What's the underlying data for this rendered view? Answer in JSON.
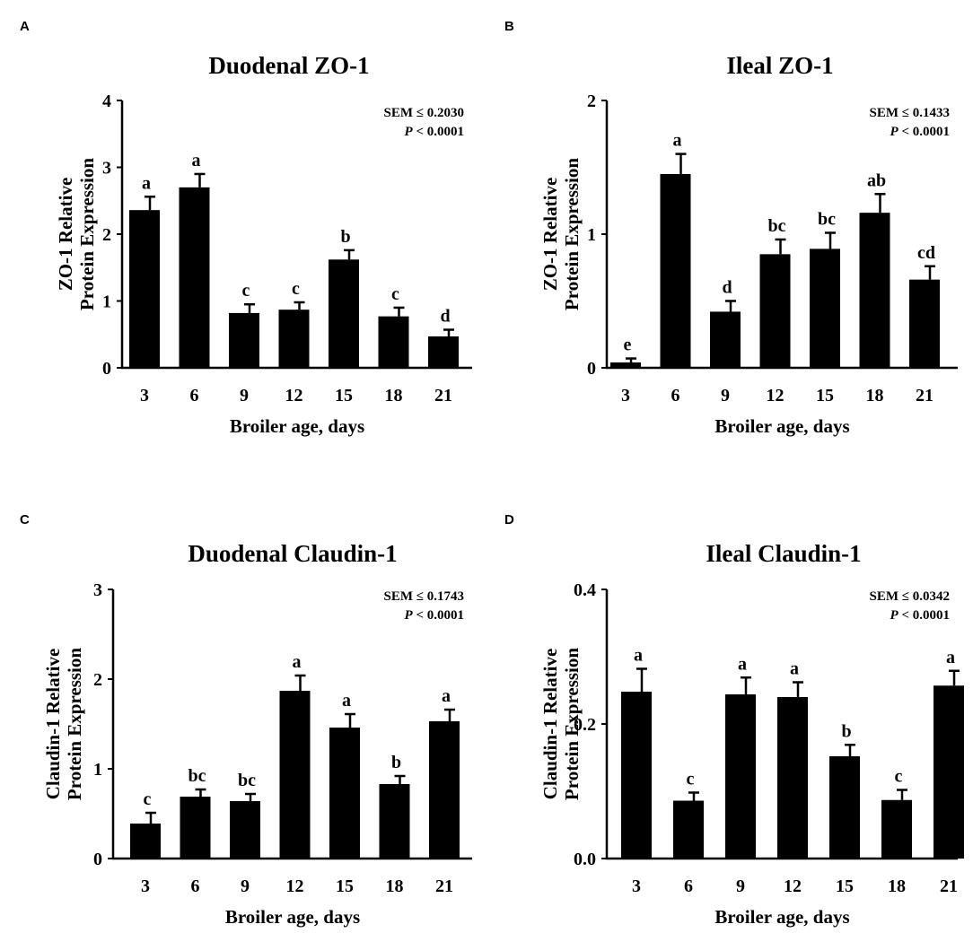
{
  "chart_data": [
    {
      "panel": "A",
      "type": "bar",
      "title": "Duodenal ZO-1",
      "ylabel": [
        "ZO-1 Relative",
        "Protein Expression"
      ],
      "xlabel": "Broiler age, days",
      "categories": [
        "3",
        "6",
        "9",
        "12",
        "15",
        "18",
        "21"
      ],
      "values": [
        2.36,
        2.7,
        0.82,
        0.87,
        1.62,
        0.77,
        0.47
      ],
      "errors": [
        0.2,
        0.2,
        0.13,
        0.11,
        0.14,
        0.13,
        0.1
      ],
      "letters": [
        "a",
        "a",
        "c",
        "c",
        "b",
        "c",
        "d"
      ],
      "ylim": [
        0,
        4
      ],
      "yticks": [
        0,
        1,
        2,
        3,
        4
      ],
      "ytick_labels": [
        "0",
        "1",
        "2",
        "3",
        "4"
      ],
      "sem": "SEM ≤ 0.2030",
      "p_label": "P",
      "p_value": "< 0.0001"
    },
    {
      "panel": "B",
      "type": "bar",
      "title": "Ileal ZO-1",
      "ylabel": [
        "ZO-1 Relative",
        "Protein Expression"
      ],
      "xlabel": "Broiler age, days",
      "categories": [
        "3",
        "6",
        "9",
        "12",
        "15",
        "18",
        "21"
      ],
      "values": [
        0.04,
        1.45,
        0.42,
        0.85,
        0.89,
        1.16,
        0.66
      ],
      "errors": [
        0.03,
        0.15,
        0.08,
        0.11,
        0.12,
        0.14,
        0.1
      ],
      "letters": [
        "e",
        "a",
        "d",
        "bc",
        "bc",
        "ab",
        "cd"
      ],
      "ylim": [
        0,
        2
      ],
      "yticks": [
        0,
        1,
        2
      ],
      "ytick_labels": [
        "0",
        "1",
        "2"
      ],
      "sem": "SEM ≤ 0.1433",
      "p_label": "P",
      "p_value": "< 0.0001"
    },
    {
      "panel": "C",
      "type": "bar",
      "title": "Duodenal Claudin-1",
      "ylabel": [
        "Claudin-1 Relative",
        "Protein Expression"
      ],
      "xlabel": "Broiler age, days",
      "categories": [
        "3",
        "6",
        "9",
        "12",
        "15",
        "18",
        "21"
      ],
      "values": [
        0.39,
        0.69,
        0.64,
        1.87,
        1.46,
        0.83,
        1.53
      ],
      "errors": [
        0.12,
        0.08,
        0.08,
        0.17,
        0.15,
        0.09,
        0.13
      ],
      "letters": [
        "c",
        "bc",
        "bc",
        "a",
        "a",
        "b",
        "a"
      ],
      "ylim": [
        0,
        3
      ],
      "yticks": [
        0,
        1,
        2,
        3
      ],
      "ytick_labels": [
        "0",
        "1",
        "2",
        "3"
      ],
      "sem": "SEM ≤ 0.1743",
      "p_label": "P",
      "p_value": "< 0.0001"
    },
    {
      "panel": "D",
      "type": "bar",
      "title": "Ileal Claudin-1",
      "ylabel": [
        "Claudin-1 Relative",
        "Protein Expression"
      ],
      "xlabel": "Broiler age, days",
      "categories": [
        "3",
        "6",
        "9",
        "12",
        "15",
        "18",
        "21"
      ],
      "values": [
        0.248,
        0.086,
        0.244,
        0.24,
        0.152,
        0.087,
        0.257
      ],
      "errors": [
        0.034,
        0.012,
        0.025,
        0.022,
        0.017,
        0.015,
        0.022
      ],
      "letters": [
        "a",
        "c",
        "a",
        "a",
        "b",
        "c",
        "a"
      ],
      "ylim": [
        0,
        0.4
      ],
      "yticks": [
        0,
        0.2,
        0.4
      ],
      "ytick_labels": [
        "0.0",
        "0.2",
        "0.4"
      ],
      "sem": "SEM ≤ 0.0342",
      "p_label": "P",
      "p_value": "< 0.0001"
    }
  ]
}
